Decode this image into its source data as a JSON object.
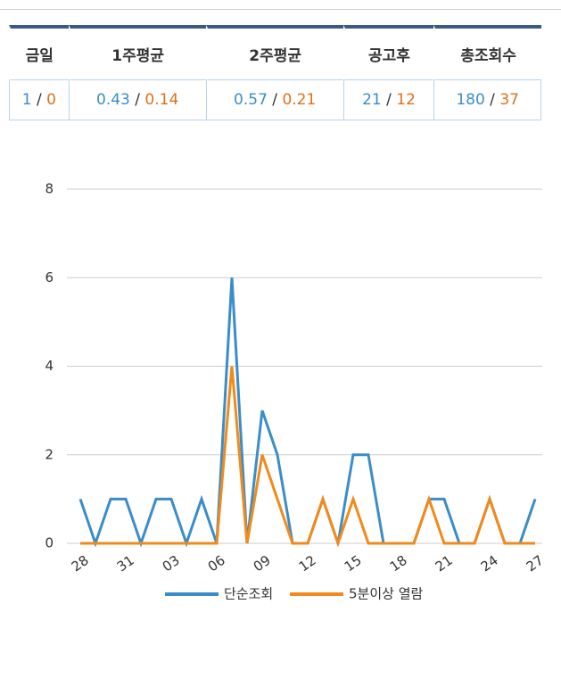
{
  "table": {
    "header": [
      "금일",
      "1주평균",
      "2주평균",
      "공고후",
      "총조회수"
    ],
    "rows": [
      [
        [
          1,
          0
        ],
        [
          0.43,
          0.14
        ],
        [
          0.57,
          0.21
        ],
        [
          21,
          12
        ],
        [
          180,
          37
        ]
      ]
    ],
    "separator": "/"
  },
  "chart_data": {
    "type": "line",
    "categories": [
      "28",
      null,
      null,
      "31",
      null,
      null,
      "03",
      null,
      null,
      "06",
      null,
      null,
      "09",
      null,
      null,
      "12",
      null,
      null,
      "15",
      null,
      null,
      "18",
      null,
      null,
      "21",
      null,
      null,
      "24",
      null,
      null,
      "27"
    ],
    "series": [
      {
        "name": "단순조회",
        "color": "#3a8dc8",
        "values": [
          1,
          0,
          1,
          1,
          0,
          1,
          1,
          0,
          1,
          0,
          6,
          0,
          3,
          2,
          0,
          0,
          1,
          0,
          2,
          2,
          0,
          0,
          0,
          1,
          1,
          0,
          0,
          1,
          0,
          0,
          1
        ]
      },
      {
        "name": "5분이상 열람",
        "color": "#f28a1a",
        "values": [
          0,
          0,
          0,
          0,
          0,
          0,
          0,
          0,
          0,
          0,
          4,
          0,
          2,
          1,
          0,
          0,
          1,
          0,
          1,
          0,
          0,
          0,
          0,
          1,
          0,
          0,
          0,
          1,
          0,
          0,
          0
        ]
      }
    ],
    "ylim": [
      0,
      8
    ],
    "yticks": [
      0,
      2,
      4,
      6,
      8
    ],
    "grid": true,
    "legend": "bottom"
  }
}
